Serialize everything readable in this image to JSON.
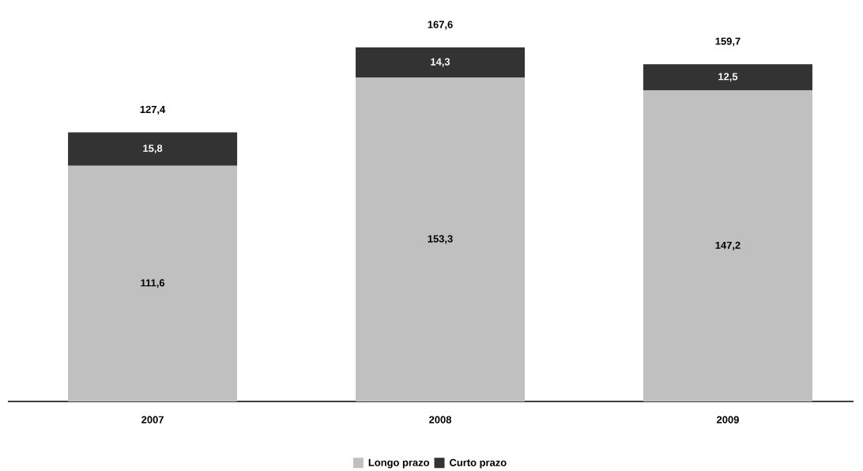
{
  "chart_data": {
    "type": "bar",
    "stacked": true,
    "legend": "bottom",
    "categories": [
      "2007",
      "2008",
      "2009"
    ],
    "series": [
      {
        "name": "Longo prazo",
        "color": "#c0c0c0",
        "values": [
          111.6,
          153.3,
          147.2
        ],
        "value_labels": [
          "111,6",
          "153,3",
          "147,2"
        ]
      },
      {
        "name": "Curto prazo",
        "color": "#333333",
        "values": [
          15.8,
          14.3,
          12.5
        ],
        "value_labels": [
          "15,8",
          "14,3",
          "12,5"
        ]
      }
    ],
    "totals": [
      "127,4",
      "167,6",
      "159,7"
    ]
  }
}
